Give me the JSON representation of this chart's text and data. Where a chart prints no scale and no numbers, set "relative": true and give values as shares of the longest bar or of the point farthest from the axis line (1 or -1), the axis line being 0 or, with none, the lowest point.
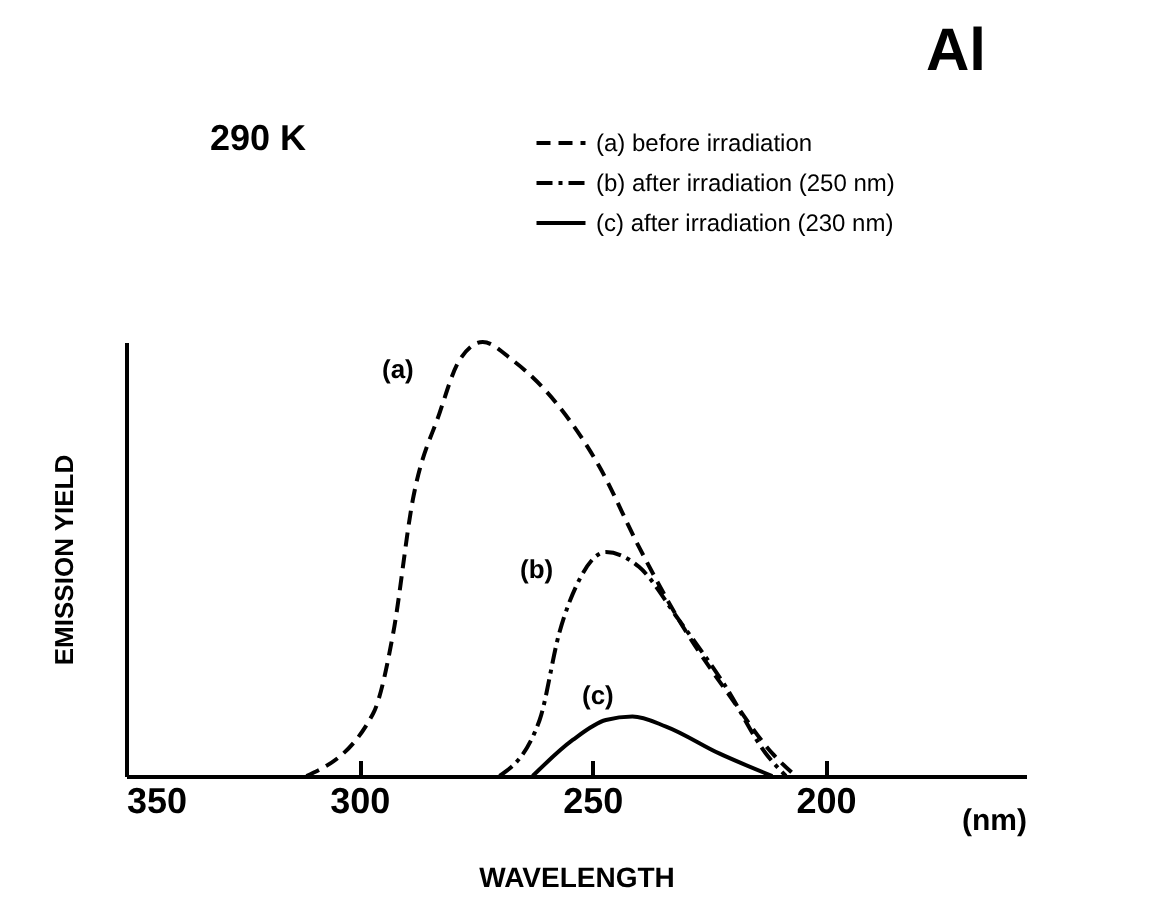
{
  "chart_data": {
    "type": "line",
    "title": "Al",
    "xlabel": "WAVELENGTH",
    "ylabel": "EMISSION YIELD",
    "relative": true,
    "xlim": [
      350,
      157
    ],
    "xticks": [
      350,
      300,
      250,
      200
    ],
    "legend": "top right",
    "annotations": [
      "290 K",
      "(nm)",
      "(a)",
      "(b)",
      "(c)"
    ],
    "series": [
      {
        "name": "(a) before irradiation",
        "color": "#000000",
        "line_style": "dashed",
        "x": [
          311.3,
          297.0,
          292.7,
          288.5,
          282.8,
          278.5,
          273.5,
          267.1,
          257.1,
          248.5,
          240.0,
          231.4,
          219.9,
          211.4,
          206.4
        ],
        "values": [
          0,
          0.144,
          0.329,
          0.636,
          0.835,
          0.958,
          1.0,
          0.958,
          0.851,
          0.713,
          0.528,
          0.359,
          0.175,
          0.052,
          0
        ]
      },
      {
        "name": "(b) after irradiation (250 nm)",
        "color": "#000000",
        "line_style": "dashdot",
        "x": [
          269.9,
          261.3,
          257.1,
          252.8,
          247.1,
          240.0,
          231.4,
          221.4,
          212.8,
          208.5
        ],
        "values": [
          0,
          0.129,
          0.329,
          0.452,
          0.516,
          0.482,
          0.359,
          0.206,
          0.052,
          0
        ]
      },
      {
        "name": "(c) after irradiation (230 nm)",
        "color": "#000000",
        "line_style": "solid",
        "x": [
          262.8,
          254.2,
          247.1,
          241.4,
          234.2,
          222.8,
          211.4
        ],
        "values": [
          0,
          0.083,
          0.129,
          0.137,
          0.114,
          0.052,
          0
        ]
      }
    ]
  }
}
